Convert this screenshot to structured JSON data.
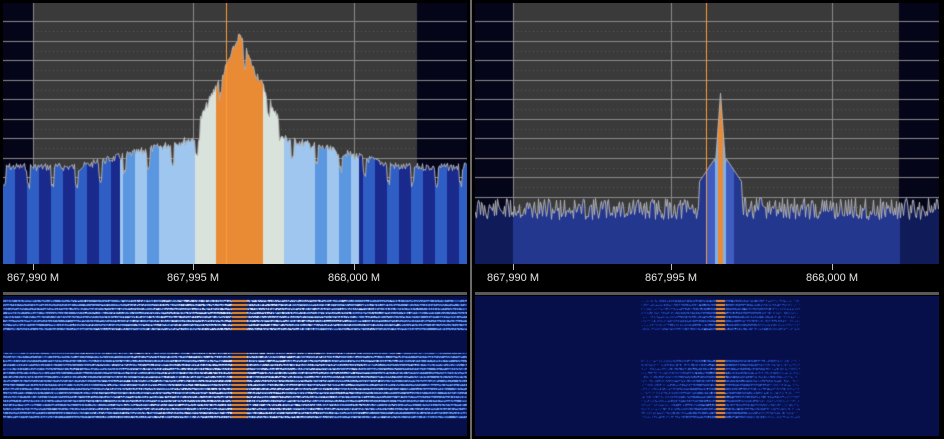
{
  "panels": [
    {
      "id": "left",
      "description_mode": "wide",
      "freq_labels": [
        "867,990 M",
        "867,995 M",
        "868,000 M"
      ],
      "marker_color": "#ff9933",
      "palette": [
        "#1a2a8c",
        "#2f5fc4",
        "#5b97e0",
        "#9fc6ee",
        "#d9e3dc",
        "#e98a35"
      ]
    },
    {
      "id": "right",
      "description_mode": "narrow",
      "freq_labels": [
        "867,990 M",
        "867,995 M",
        "868,000 M"
      ],
      "marker_color": "#ff9933",
      "palette": [
        "#101c5a",
        "#24378f",
        "#3f5cc0",
        "#7fb0e8",
        "#e98a35"
      ]
    }
  ]
}
